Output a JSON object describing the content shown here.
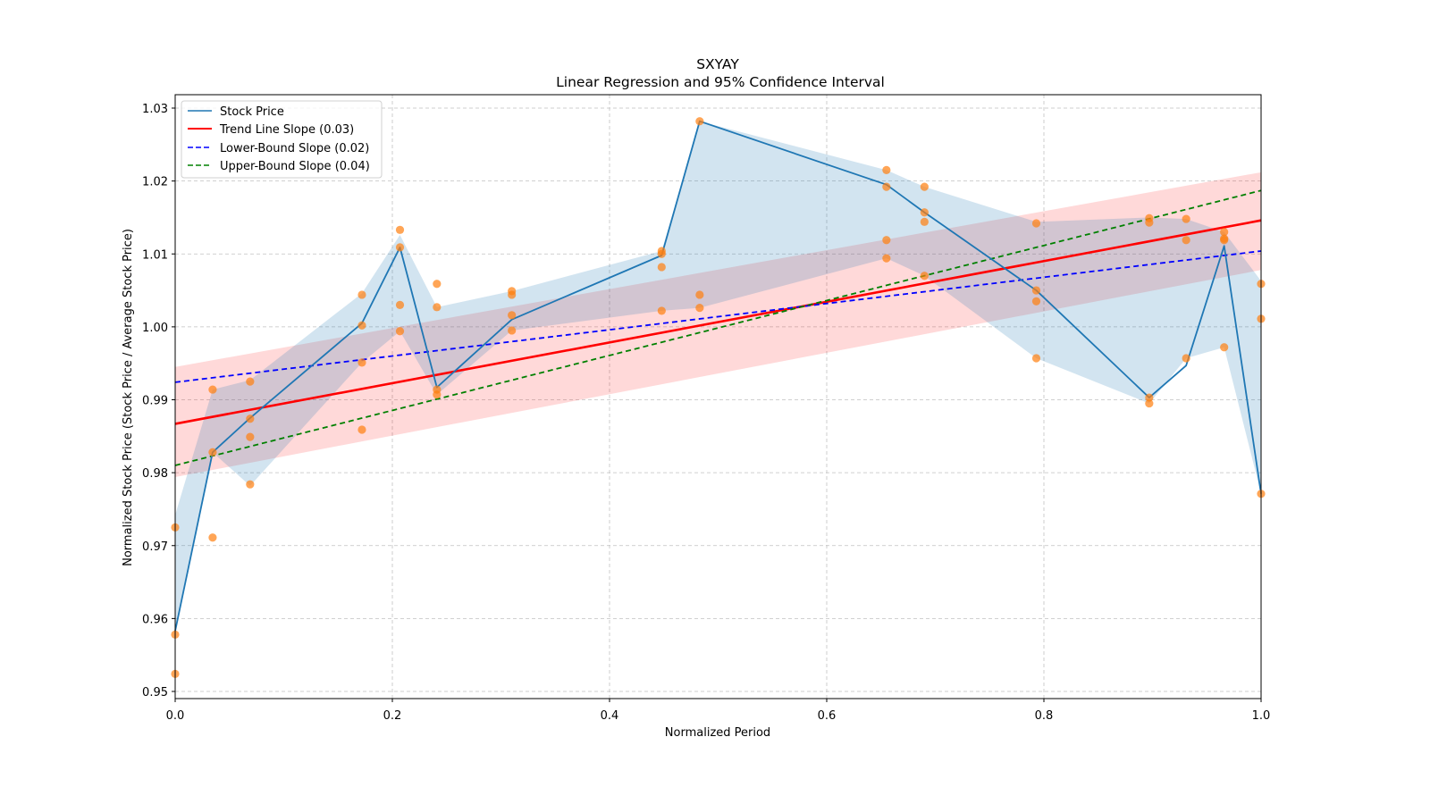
{
  "chart_data": {
    "type": "line",
    "title": "SXYAY",
    "subtitle": "Linear Regression and 95% Confidence Interval",
    "xlabel": "Normalized Period",
    "ylabel": "Normalized Stock Price (Stock Price / Average Stock Price)",
    "xlim": [
      0.0,
      1.0
    ],
    "ylim": [
      0.949,
      1.0315
    ],
    "grid": true,
    "legend_position": "top-left",
    "x_ticks": [
      "0.0",
      "0.2",
      "0.4",
      "0.6",
      "0.8",
      "1.0"
    ],
    "x_tick_values": [
      0.0,
      0.2,
      0.4,
      0.6,
      0.8,
      1.0
    ],
    "y_ticks": [
      "0.95",
      "0.96",
      "0.97",
      "0.98",
      "0.99",
      "1.00",
      "1.01",
      "1.02",
      "1.03"
    ],
    "y_tick_values": [
      0.95,
      0.96,
      0.97,
      0.98,
      0.99,
      1.0,
      1.01,
      1.02,
      1.03
    ],
    "colors": {
      "stock": "#1f77b4",
      "band": "#1f77b4",
      "scatter": "#ff7f0e",
      "trend": "#ff0000",
      "trend_band": "#ff0000",
      "lower": "#0000ff",
      "upper": "#008000"
    },
    "series": [
      {
        "name": "Stock Price",
        "style": "solid",
        "x": [
          0.0,
          0.0345,
          0.069,
          0.172,
          0.207,
          0.241,
          0.31,
          0.448,
          0.483,
          0.655,
          0.69,
          0.793,
          0.897,
          0.931,
          0.966,
          1.0
        ],
        "values": [
          0.9583,
          0.9828,
          0.9875,
          1.0005,
          1.0109,
          0.9917,
          1.001,
          1.0098,
          1.0282,
          1.0195,
          1.0157,
          1.005,
          0.9903,
          0.9947,
          1.0111,
          0.9771
        ],
        "band_upper": [
          0.9742,
          0.9914,
          0.9927,
          1.0046,
          1.0126,
          1.0027,
          1.0049,
          1.0104,
          1.0282,
          1.0215,
          1.0192,
          1.0144,
          1.015,
          1.0148,
          1.013,
          1.0063
        ],
        "band_lower": [
          0.9578,
          0.9828,
          0.9782,
          0.9951,
          0.9994,
          0.9907,
          0.9995,
          1.0022,
          1.0026,
          1.0094,
          1.007,
          0.9957,
          0.9895,
          0.9957,
          0.9972,
          0.9771
        ]
      },
      {
        "name": "Trend Line Slope (0.03)",
        "style": "solid",
        "x": [
          0.0,
          1.0
        ],
        "values": [
          0.9867,
          1.0146
        ],
        "band_upper": [
          0.9945,
          1.0212
        ],
        "band_lower": [
          0.9794,
          1.0078
        ]
      },
      {
        "name": "Lower-Bound Slope (0.02)",
        "style": "dashed",
        "x": [
          0.0,
          1.0
        ],
        "values": [
          0.9924,
          1.0104
        ]
      },
      {
        "name": "Upper-Bound Slope (0.04)",
        "style": "dashed",
        "x": [
          0.0,
          1.0
        ],
        "values": [
          0.981,
          1.0187
        ]
      }
    ],
    "scatter": {
      "x": [
        0,
        0,
        0,
        0.0345,
        0.0345,
        0.0345,
        0.069,
        0.069,
        0.069,
        0.069,
        0.172,
        0.172,
        0.172,
        0.172,
        0.207,
        0.207,
        0.207,
        0.207,
        0.241,
        0.241,
        0.241,
        0.241,
        0.31,
        0.31,
        0.31,
        0.31,
        0.448,
        0.448,
        0.448,
        0.448,
        0.483,
        0.483,
        0.483,
        0.655,
        0.655,
        0.655,
        0.655,
        0.69,
        0.69,
        0.69,
        0.69,
        0.793,
        0.793,
        0.793,
        0.793,
        0.897,
        0.897,
        0.897,
        0.897,
        0.931,
        0.931,
        0.931,
        0.966,
        0.966,
        0.966,
        0.966,
        1.0,
        1.0,
        1.0
      ],
      "y": [
        0.9725,
        0.9578,
        0.9524,
        0.9914,
        0.9828,
        0.9711,
        0.9925,
        0.9874,
        0.9849,
        0.9784,
        1.0044,
        1.0002,
        0.9951,
        0.9859,
        1.0133,
        1.0109,
        1.003,
        0.9994,
        1.0059,
        1.0027,
        0.9914,
        0.9907,
        1.0049,
        1.0044,
        1.0016,
        0.9995,
        1.0104,
        1.01,
        1.0082,
        1.0022,
        1.0282,
        1.0044,
        1.0026,
        1.0215,
        1.0192,
        1.0119,
        1.0094,
        1.0192,
        1.0157,
        1.0144,
        1.007,
        1.0142,
        1.005,
        1.0035,
        0.9957,
        1.0149,
        1.0143,
        0.9903,
        0.9895,
        1.0148,
        1.0119,
        0.9957,
        1.013,
        1.0121,
        1.0119,
        0.9972,
        1.0059,
        1.0011,
        0.9771
      ]
    },
    "legend": [
      {
        "label": "Stock Price",
        "key": "stock"
      },
      {
        "label": "Trend Line Slope (0.03)",
        "key": "trend"
      },
      {
        "label": "Lower-Bound Slope (0.02)",
        "key": "lower"
      },
      {
        "label": "Upper-Bound Slope (0.04)",
        "key": "upper"
      }
    ]
  }
}
